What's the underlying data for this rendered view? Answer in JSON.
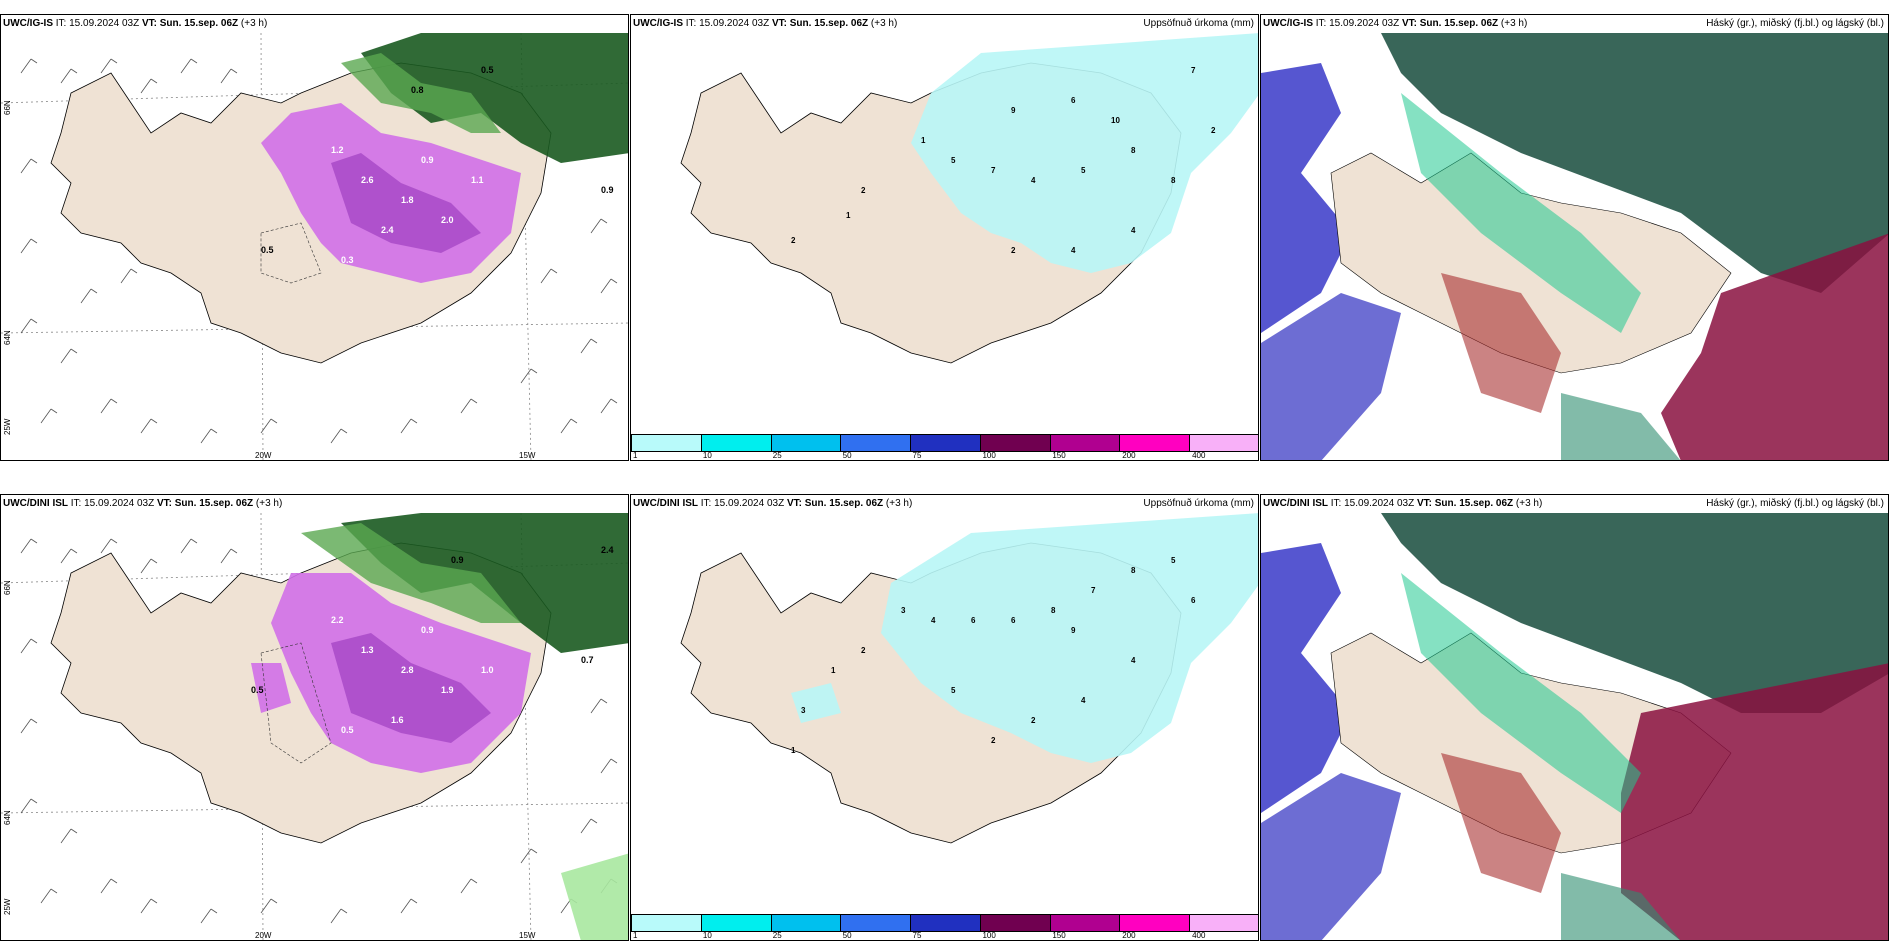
{
  "rows": [
    {
      "model": "UWC/IG-IS",
      "it": "IT: 15.09.2024 03Z",
      "vt_label": "VT:",
      "vt_value": "Sun. 15.sep. 06Z",
      "lead": "(+3 h)"
    },
    {
      "model": "UWC/DINI ISL",
      "it": "IT: 15.09.2024 03Z",
      "vt_label": "VT:",
      "vt_value": "Sun. 15.sep. 06Z",
      "lead": "(+3 h)"
    }
  ],
  "precip_title": "Uppsöfnuð úrkoma (mm)",
  "cloud_title": "Háský (gr.), miðský (fj.bl.) og lágský (bl.)",
  "colorbar": {
    "ticks": [
      "1",
      "10",
      "25",
      "50",
      "75",
      "100",
      "150",
      "200",
      "400"
    ],
    "colors": [
      "#b8fafa",
      "#00eeee",
      "#00c0ee",
      "#3070f0",
      "#2030c0",
      "#700050",
      "#b00090",
      "#ff00c0",
      "#f8b0f8"
    ]
  },
  "wind_axis": {
    "lat_labels": [
      "66N",
      "64N"
    ],
    "lon_labels": [
      "20W",
      "15W"
    ],
    "corner_label": "25W"
  },
  "colors": {
    "land": "#efe2d4",
    "sea": "#ffffff",
    "precip_light": "#b8f6f6",
    "snow_pink": "#d070e8",
    "green_dark": "#1a5a20",
    "green_light": "#a8e8a0",
    "cloud_high": "#2e5e50",
    "cloud_mid": "#8a1040",
    "cloud_low": "#3838c8"
  }
}
